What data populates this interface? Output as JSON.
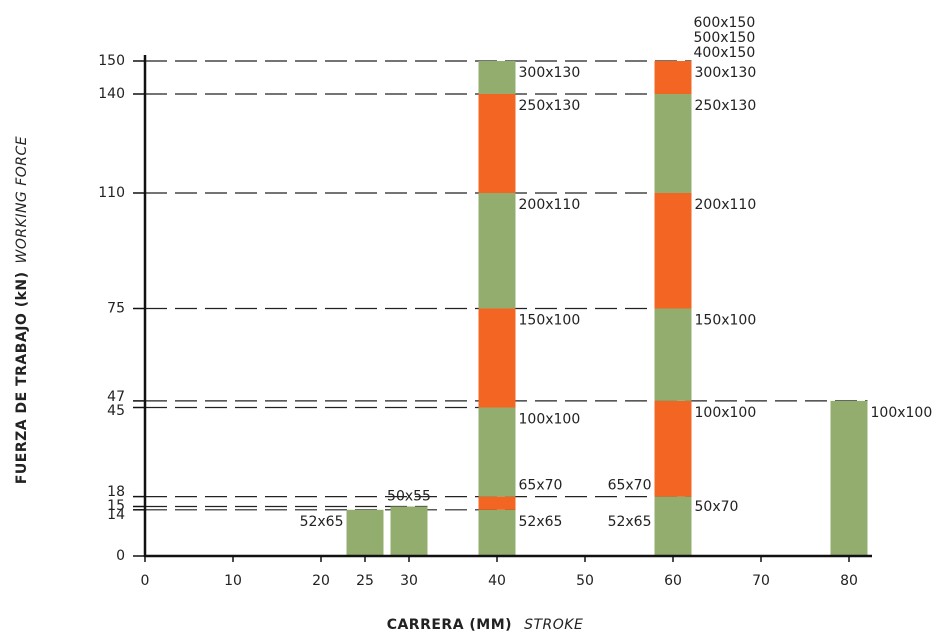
{
  "chart_data": {
    "type": "stacked_column",
    "x_label": "CARRERA (MM)",
    "x_label_en": "STROKE",
    "y_label": "FUERZA DE TRABAJO (kN)",
    "y_label_en": "WORKING FORCE",
    "xlim": [
      0,
      80
    ],
    "xticks": [
      0,
      10,
      20,
      25,
      30,
      40,
      50,
      60,
      70,
      80
    ],
    "ylim": [
      0,
      150
    ],
    "yticks": [
      0,
      14,
      15,
      18,
      45,
      47,
      75,
      110,
      140,
      150
    ],
    "colors": {
      "green": "#93ad6f",
      "orange": "#f26522"
    },
    "columns": [
      {
        "x": 25,
        "segments": [
          {
            "value": 14,
            "color": "green"
          }
        ]
      },
      {
        "x": 30,
        "segments": [
          {
            "value": 15,
            "color": "green"
          }
        ]
      },
      {
        "x": 40,
        "segments": [
          {
            "value": 14,
            "color": "green"
          },
          {
            "value": 4,
            "color": "orange"
          },
          {
            "value": 27,
            "color": "green"
          },
          {
            "value": 30,
            "color": "orange"
          },
          {
            "value": 35,
            "color": "green"
          },
          {
            "value": 30,
            "color": "orange"
          },
          {
            "value": 10,
            "color": "green"
          }
        ]
      },
      {
        "x": 60,
        "segments": [
          {
            "value": 18,
            "color": "green"
          },
          {
            "value": 29,
            "color": "orange"
          },
          {
            "value": 28,
            "color": "green"
          },
          {
            "value": 35,
            "color": "orange"
          },
          {
            "value": 30,
            "color": "green"
          },
          {
            "value": 10,
            "color": "orange"
          }
        ]
      },
      {
        "x": 80,
        "segments": [
          {
            "value": 47,
            "color": "green"
          }
        ]
      }
    ],
    "annotations": [
      {
        "text": "52x65",
        "x": 25,
        "y": 14,
        "pos": "left-below"
      },
      {
        "text": "50x55",
        "x": 30,
        "y": 15,
        "pos": "above"
      },
      {
        "text": "52x65",
        "x": 40,
        "y": 14,
        "pos": "right-below"
      },
      {
        "text": "65x70",
        "x": 40,
        "y": 18,
        "pos": "right-above"
      },
      {
        "text": "100x100",
        "x": 40,
        "y": 45,
        "pos": "right-below"
      },
      {
        "text": "150x100",
        "x": 40,
        "y": 75,
        "pos": "right-below"
      },
      {
        "text": "200x110",
        "x": 40,
        "y": 110,
        "pos": "right-below"
      },
      {
        "text": "250x130",
        "x": 40,
        "y": 140,
        "pos": "right-below"
      },
      {
        "text": "300x130",
        "x": 40,
        "y": 150,
        "pos": "right-below"
      },
      {
        "text": "52x65",
        "x": 60,
        "y": 14,
        "pos": "left-below"
      },
      {
        "text": "65x70",
        "x": 60,
        "y": 18,
        "pos": "left-above"
      },
      {
        "text": "50x70",
        "x": 60,
        "y": 14,
        "pos": "right"
      },
      {
        "text": "100x100",
        "x": 60,
        "y": 47,
        "pos": "right-below"
      },
      {
        "text": "150x100",
        "x": 60,
        "y": 75,
        "pos": "right-below"
      },
      {
        "text": "200x110",
        "x": 60,
        "y": 110,
        "pos": "right-below"
      },
      {
        "text": "250x130",
        "x": 60,
        "y": 140,
        "pos": "right-below"
      },
      {
        "text": "300x130",
        "x": 60,
        "y": 150,
        "pos": "right-below"
      },
      {
        "text": "400x150",
        "x": 60,
        "y": 150,
        "pos": "above"
      },
      {
        "text": "500x150",
        "x": 60,
        "y": 150,
        "pos": "above"
      },
      {
        "text": "600x150",
        "x": 60,
        "y": 150,
        "pos": "above"
      },
      {
        "text": "100x100",
        "x": 80,
        "y": 47,
        "pos": "right-below"
      }
    ]
  }
}
